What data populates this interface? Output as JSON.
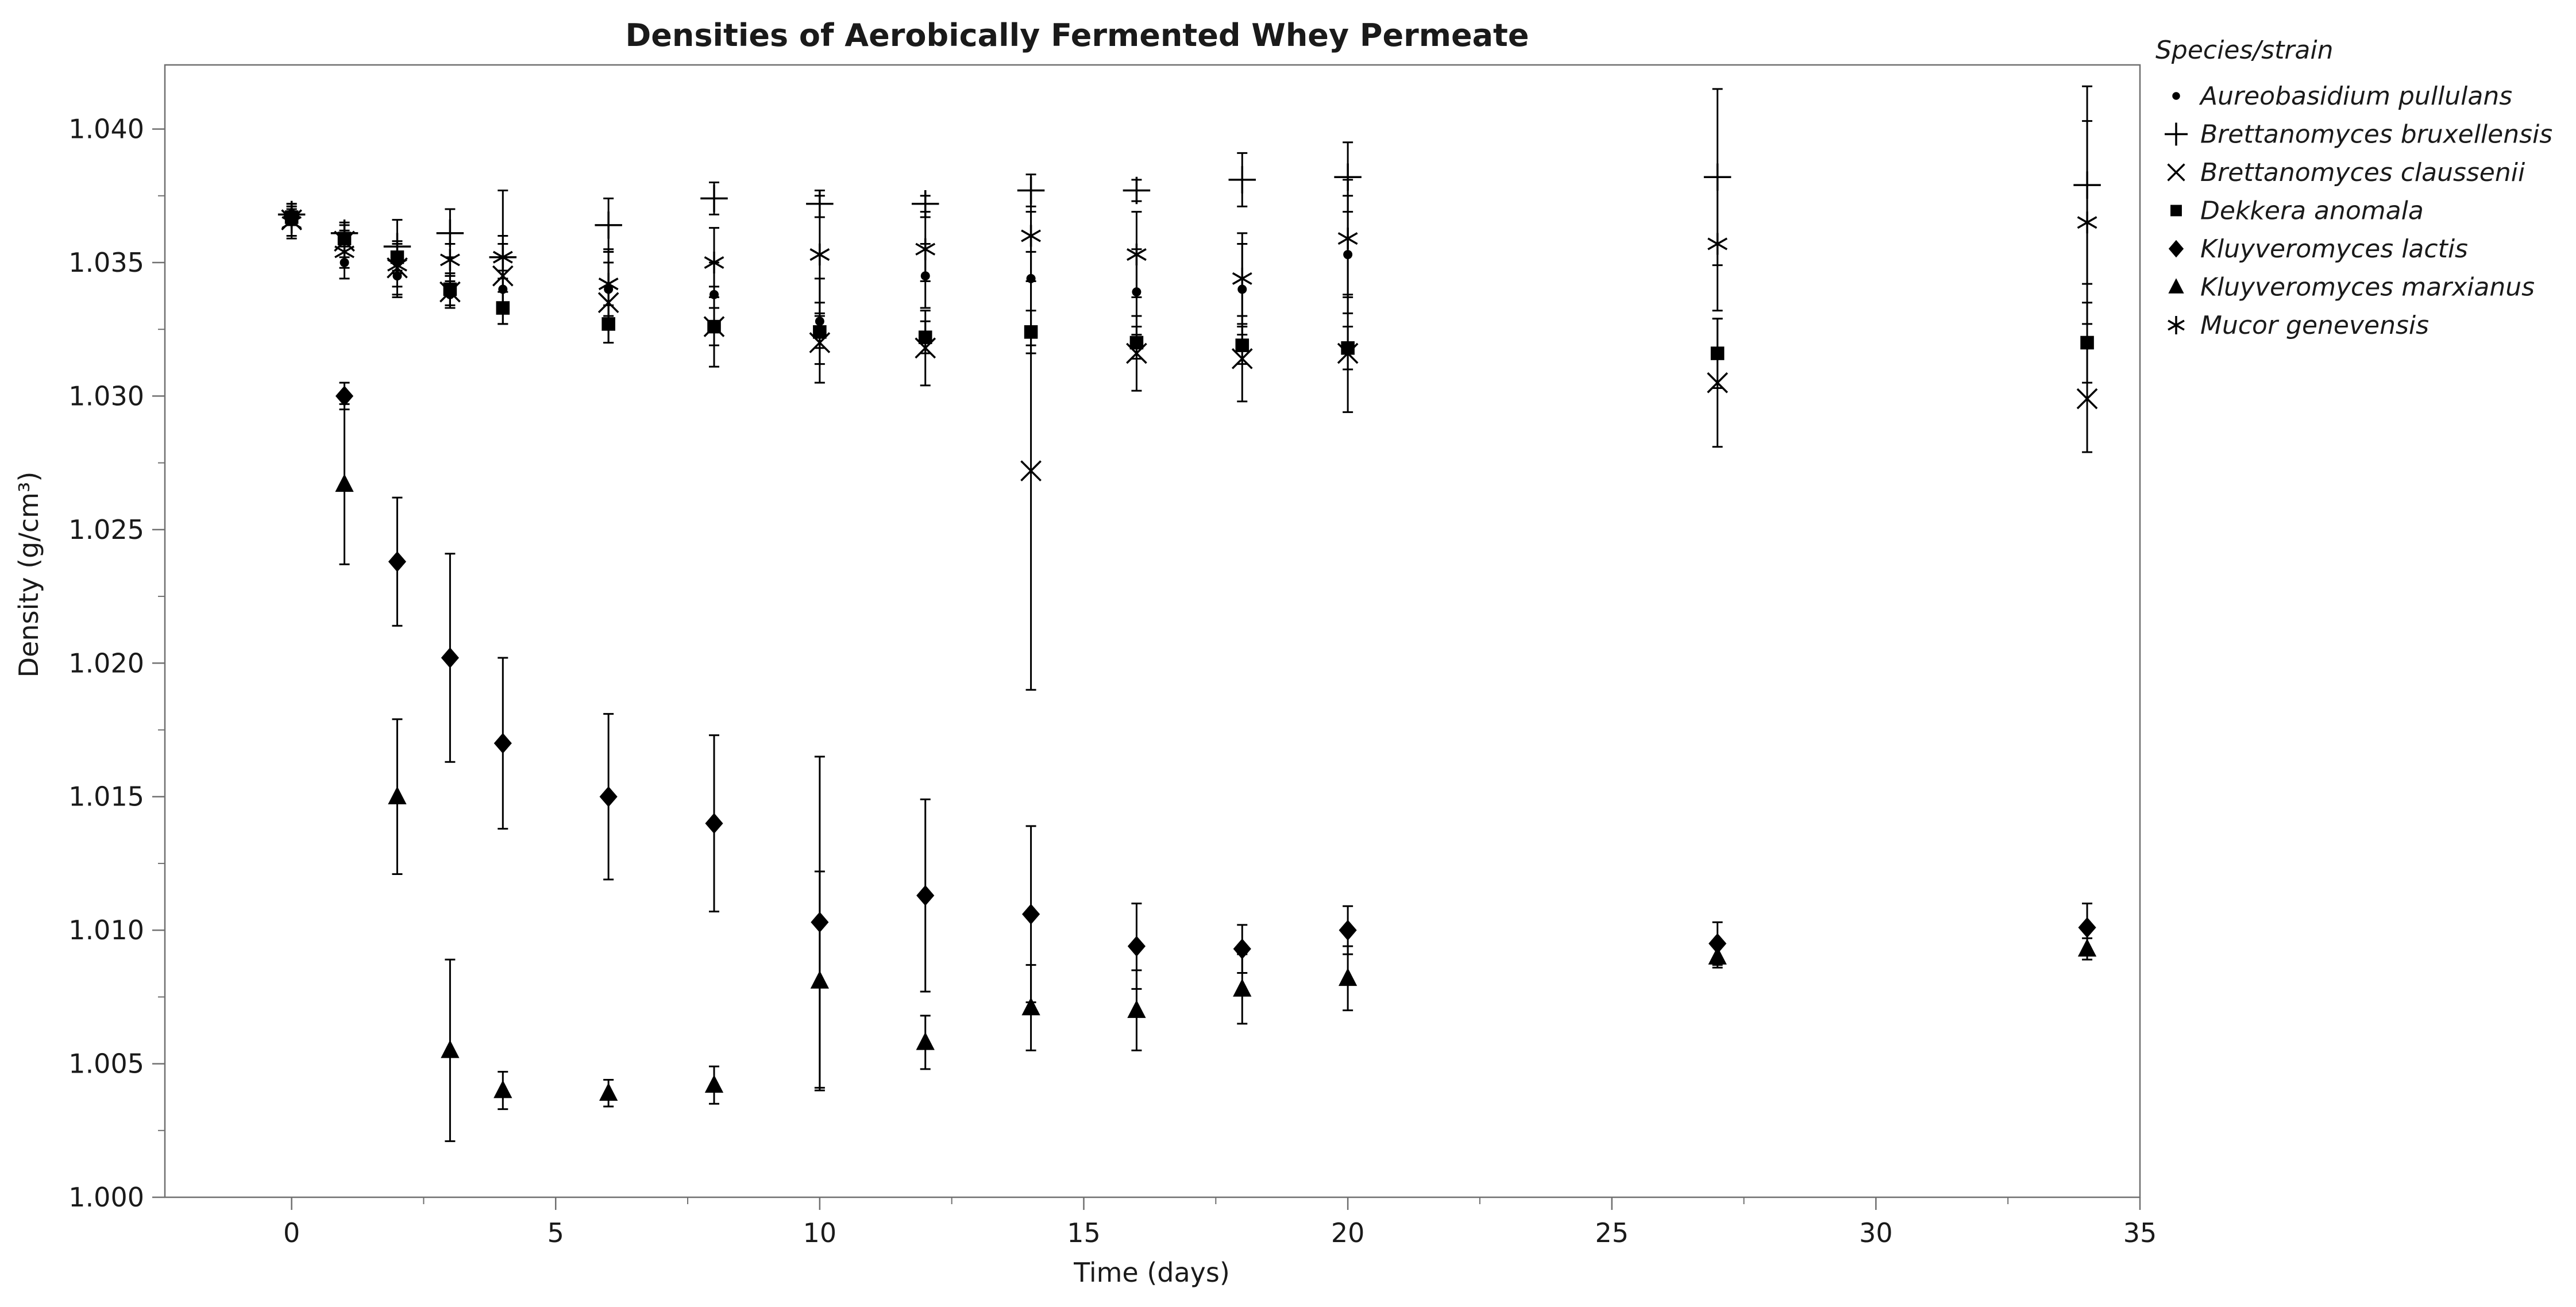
{
  "chart_data": {
    "type": "scatter",
    "title": "Densities of Aerobically Fermented Whey Permeate",
    "xlabel": "Time (days)",
    "ylabel": "Density (g/cm³)",
    "xlim": [
      -2.4,
      35
    ],
    "ylim": [
      1.0,
      1.0424
    ],
    "x_ticks": [
      0,
      5,
      10,
      15,
      20,
      25,
      30,
      35
    ],
    "y_ticks": [
      1.0,
      1.005,
      1.01,
      1.015,
      1.02,
      1.025,
      1.03,
      1.035,
      1.04
    ],
    "x_tick_labels": [
      "0",
      "5",
      "10",
      "15",
      "20",
      "25",
      "30",
      "35"
    ],
    "y_tick_labels": [
      "1.000",
      "1.005",
      "1.010",
      "1.015",
      "1.020",
      "1.025",
      "1.030",
      "1.035",
      "1.040"
    ],
    "grid": false,
    "legend": {
      "title": "Species/strain",
      "position": "right"
    },
    "color": "#000000",
    "series": [
      {
        "name": "Aureobasidium pullulans",
        "marker": "circle",
        "x": [
          0,
          1,
          2,
          3,
          4,
          6,
          8,
          10,
          12,
          14,
          16,
          18,
          20
        ],
        "y": [
          1.0368,
          1.035,
          1.0345,
          1.0338,
          1.034,
          1.034,
          1.0338,
          1.0328,
          1.0345,
          1.0344,
          1.0339,
          1.034,
          1.0353
        ],
        "err": [
          0.0004,
          0.0006,
          0.0008,
          0.0005,
          0.0007,
          0.0015,
          0.0012,
          0.0016,
          0.0012,
          0.0025,
          0.0016,
          0.0017,
          0.0022
        ]
      },
      {
        "name": "Brettanomyces bruxellensis",
        "marker": "plus",
        "x": [
          0,
          1,
          2,
          3,
          4,
          6,
          8,
          10,
          12,
          14,
          16,
          18,
          20,
          27,
          34
        ],
        "y": [
          1.0368,
          1.0361,
          1.0356,
          1.0361,
          1.0352,
          1.0364,
          1.0374,
          1.0372,
          1.0372,
          1.0377,
          1.0377,
          1.0381,
          1.0382,
          1.0382,
          1.0379
        ],
        "err": [
          0.0003,
          0.0004,
          0.001,
          0.0009,
          0.0025,
          0.001,
          0.0006,
          0.0005,
          0.0003,
          0.0006,
          0.0004,
          0.001,
          0.0013,
          0.0033,
          0.0037
        ]
      },
      {
        "name": "Brettanomyces claussenii",
        "marker": "x",
        "x": [
          0,
          1,
          2,
          3,
          4,
          6,
          8,
          10,
          12,
          14,
          16,
          18,
          20,
          27,
          34
        ],
        "y": [
          1.0366,
          1.0358,
          1.0348,
          1.0339,
          1.0345,
          1.0335,
          1.0326,
          1.032,
          1.0318,
          1.0272,
          1.0316,
          1.0314,
          1.0316,
          1.0305,
          1.0299
        ],
        "err": [
          0.0006,
          0.0006,
          0.001,
          0.0006,
          0.0012,
          0.0015,
          0.0015,
          0.0015,
          0.0014,
          0.0082,
          0.0014,
          0.0016,
          0.0022,
          0.0024,
          0.002
        ]
      },
      {
        "name": "Dekkera anomala",
        "marker": "square",
        "x": [
          0,
          1,
          2,
          3,
          4,
          6,
          8,
          10,
          12,
          14,
          16,
          18,
          20,
          27,
          34
        ],
        "y": [
          1.0367,
          1.0359,
          1.0352,
          1.034,
          1.0333,
          1.0327,
          1.0326,
          1.0324,
          1.0322,
          1.0324,
          1.032,
          1.0319,
          1.0318,
          1.0316,
          1.032
        ],
        "err": [
          0.0003,
          0.0003,
          0.0005,
          0.0006,
          0.0006,
          0.0007,
          0.0007,
          0.0006,
          0.0006,
          0.0008,
          0.0006,
          0.0007,
          0.0008,
          0.0013,
          0.0015
        ]
      },
      {
        "name": "Kluyveromyces lactis",
        "marker": "diamond",
        "x": [
          0,
          1,
          2,
          3,
          4,
          6,
          8,
          10,
          12,
          14,
          16,
          18,
          20,
          27,
          34
        ],
        "y": [
          1.0367,
          1.03,
          1.0238,
          1.0202,
          1.017,
          1.015,
          1.014,
          1.0103,
          1.0113,
          1.0106,
          1.0094,
          1.0093,
          1.01,
          1.0095,
          1.0101
        ],
        "err": [
          0.0003,
          0.0005,
          0.0024,
          0.0039,
          0.0032,
          0.0031,
          0.0033,
          0.0062,
          0.0036,
          0.0033,
          0.0016,
          0.0009,
          0.0009,
          0.0008,
          0.0009
        ]
      },
      {
        "name": "Kluyveromyces marxianus",
        "marker": "triangle",
        "x": [
          1,
          2,
          3,
          4,
          6,
          8,
          10,
          12,
          14,
          16,
          18,
          20,
          27,
          34
        ],
        "y": [
          1.0267,
          1.015,
          1.0055,
          1.004,
          1.0039,
          1.0042,
          1.0081,
          1.0058,
          1.0071,
          1.007,
          1.0078,
          1.0082,
          1.009,
          1.0093
        ],
        "err": [
          0.003,
          0.0029,
          0.0034,
          0.0007,
          0.0005,
          0.0007,
          0.0041,
          0.001,
          0.0016,
          0.0015,
          0.0013,
          0.0012,
          0.0004,
          0.0004
        ]
      },
      {
        "name": "Mucor genevensis",
        "marker": "asterisk",
        "x": [
          0,
          1,
          2,
          3,
          4,
          6,
          8,
          10,
          12,
          14,
          16,
          18,
          20,
          27,
          34
        ],
        "y": [
          1.0365,
          1.0354,
          1.0349,
          1.0351,
          1.0352,
          1.0342,
          1.035,
          1.0353,
          1.0355,
          1.036,
          1.0353,
          1.0344,
          1.0359,
          1.0357,
          1.0365
        ],
        "err": [
          0.0006,
          0.0006,
          0.0008,
          0.0006,
          0.0008,
          0.0012,
          0.0013,
          0.0022,
          0.0012,
          0.0017,
          0.0016,
          0.0017,
          0.0022,
          0.0025,
          0.0038
        ]
      }
    ]
  }
}
